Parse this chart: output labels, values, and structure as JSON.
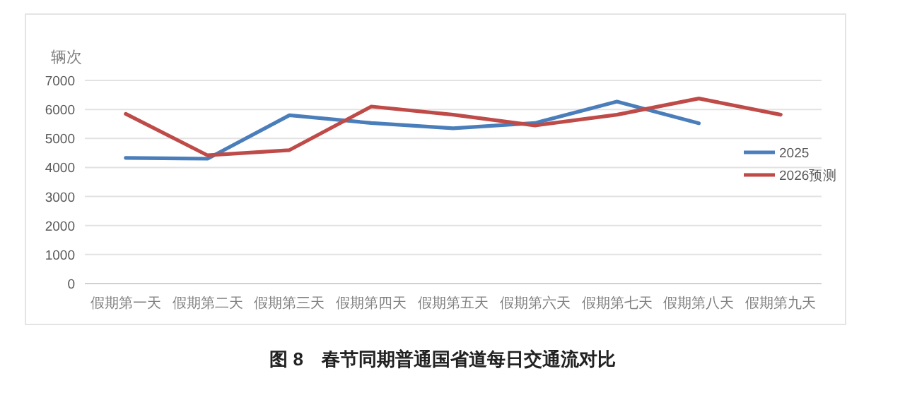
{
  "chart_data": {
    "type": "line",
    "title": "图 8　春节同期普通国省道每日交通流对比",
    "ylabel": "辆次",
    "categories": [
      "假期第一天",
      "假期第二天",
      "假期第三天",
      "假期第四天",
      "假期第五天",
      "假期第六天",
      "假期第七天",
      "假期第八天",
      "假期第九天"
    ],
    "series": [
      {
        "name": "2025",
        "color": "#4a7ebb",
        "values": [
          4330,
          4300,
          5800,
          5530,
          5350,
          5530,
          6270,
          5520,
          null
        ]
      },
      {
        "name": "2026预测",
        "color": "#be4b48",
        "values": [
          5850,
          4420,
          4600,
          6100,
          5820,
          5450,
          5820,
          6380,
          5820
        ]
      }
    ],
    "ylim": [
      0,
      7000
    ],
    "yticks": [
      0,
      1000,
      2000,
      3000,
      4000,
      5000,
      6000,
      7000
    ],
    "grid": "y",
    "legend": "right",
    "marker": "none",
    "line_style": "solid"
  }
}
